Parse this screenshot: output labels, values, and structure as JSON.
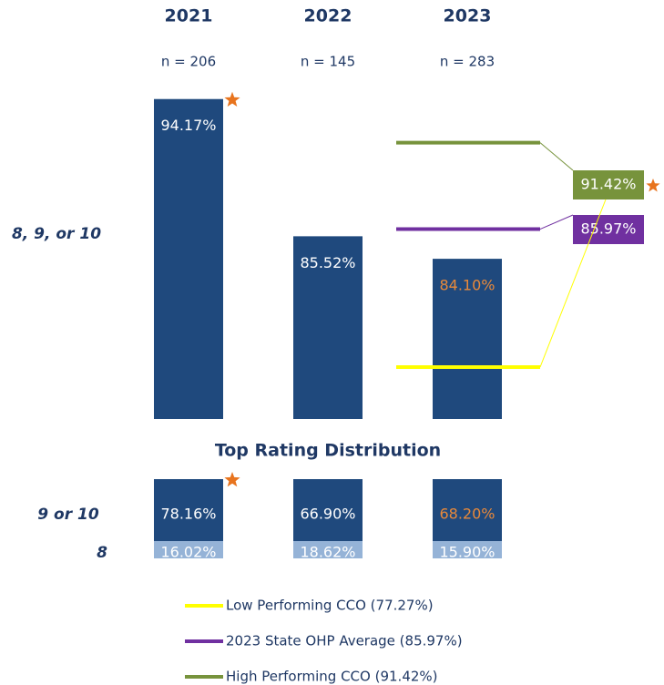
{
  "chart_data": {
    "type": "bar",
    "categories": [
      "2021",
      "2022",
      "2023"
    ],
    "n_labels": [
      "n = 206",
      "n = 145",
      "n = 283"
    ],
    "ylim": [
      74,
      100
    ],
    "top_bar": {
      "label": "8, 9, or 10",
      "values": [
        94.17,
        85.52,
        84.1
      ],
      "value_labels": [
        "94.17%",
        "85.52%",
        "84.10%"
      ],
      "color": "#1f497d",
      "label_colors": [
        "#ffffff",
        "#ffffff",
        "#e8893a"
      ],
      "starred": [
        true,
        false,
        false
      ]
    },
    "reference_lines": [
      {
        "name": "High Performing CCO (91.42%)",
        "value": 91.42,
        "value_label": "91.42%",
        "color": "#77933c",
        "starred": true
      },
      {
        "name": "2023 State OHP Average (85.97%)",
        "value": 85.97,
        "value_label": "85.97%",
        "color": "#7030a0",
        "starred": false
      },
      {
        "name": "Low Performing CCO (77.27%)",
        "value": 77.27,
        "color": "#ffff00",
        "starred": false
      }
    ],
    "distribution": {
      "title": "Top Rating Distribution",
      "series": [
        {
          "name": "9 or 10",
          "values": [
            78.16,
            66.9,
            68.2
          ],
          "value_labels": [
            "78.16%",
            "66.90%",
            "68.20%"
          ],
          "color": "#1f497d",
          "label_colors": [
            "#ffffff",
            "#ffffff",
            "#e8893a"
          ]
        },
        {
          "name": "8",
          "values": [
            16.02,
            18.62,
            15.9
          ],
          "value_labels": [
            "16.02%",
            "18.62%",
            "15.90%"
          ],
          "color": "#95b3d7",
          "label_colors": [
            "#ffffff",
            "#ffffff",
            "#ffffff"
          ]
        }
      ],
      "starred": [
        true,
        false,
        false
      ]
    }
  }
}
